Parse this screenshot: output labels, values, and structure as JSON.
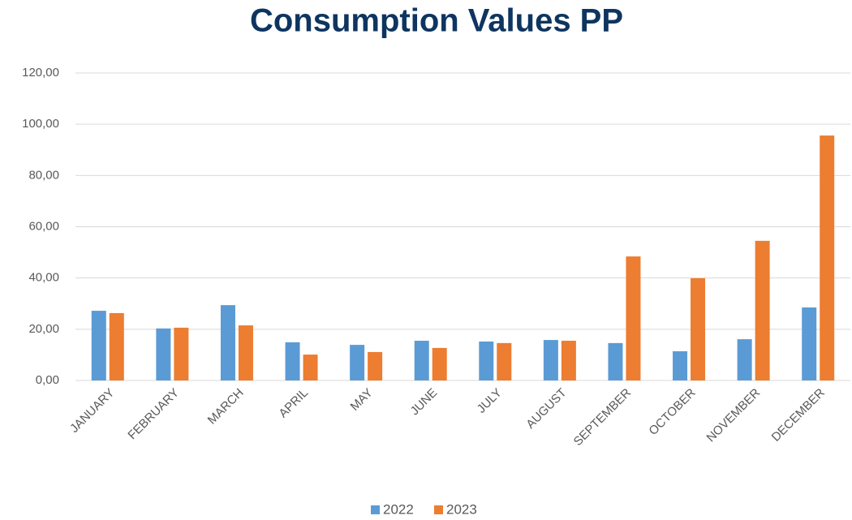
{
  "chart_data": {
    "type": "bar",
    "title": "Consumption Values PP",
    "categories": [
      "JANUARY",
      "FEBRUARY",
      "MARCH",
      "APRIL",
      "MAY",
      "JUNE",
      "JULY",
      "AUGUST",
      "SEPTEMBER",
      "OCTOBER",
      "NOVEMBER",
      "DECEMBER"
    ],
    "series": [
      {
        "name": "2022",
        "color": "#5b9bd5",
        "values": [
          27.2,
          20.3,
          29.4,
          14.9,
          13.9,
          15.5,
          15.2,
          15.8,
          14.6,
          11.4,
          16.1,
          28.5
        ]
      },
      {
        "name": "2023",
        "color": "#ed7d31",
        "values": [
          26.3,
          20.6,
          21.5,
          10.1,
          11.1,
          12.7,
          14.6,
          15.5,
          48.4,
          39.9,
          54.5,
          95.6
        ]
      }
    ],
    "ylim": [
      0,
      120
    ],
    "yticks": [
      {
        "value": 0,
        "label": "0,00"
      },
      {
        "value": 20,
        "label": "20,00"
      },
      {
        "value": 40,
        "label": "40,00"
      },
      {
        "value": 60,
        "label": "60,00"
      },
      {
        "value": 80,
        "label": "80,00"
      },
      {
        "value": 100,
        "label": "100,00"
      },
      {
        "value": 120,
        "label": "120,00"
      }
    ],
    "grid": true,
    "legend": "bottom"
  }
}
